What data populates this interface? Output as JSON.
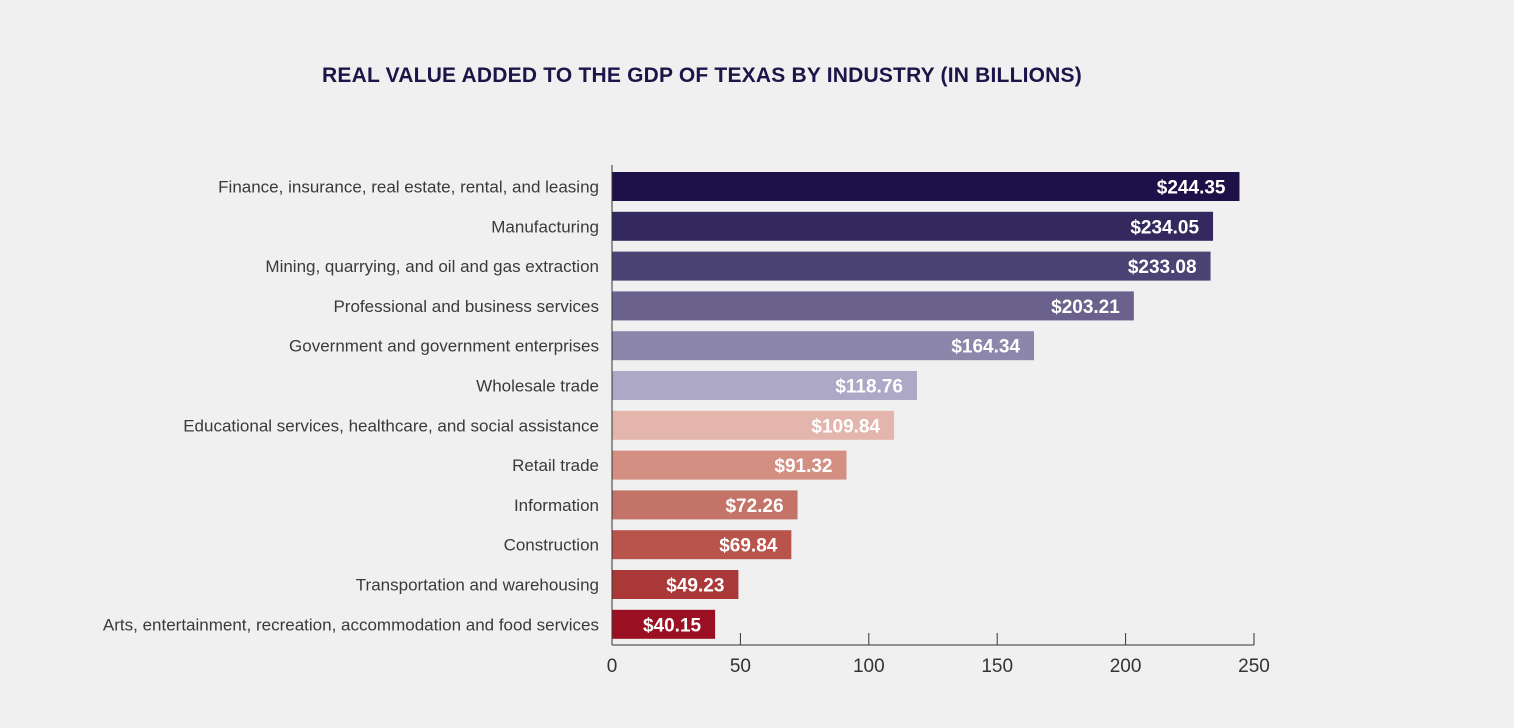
{
  "chart_data": {
    "type": "bar",
    "orientation": "horizontal",
    "title": "REAL VALUE ADDED TO THE GDP OF TEXAS BY INDUSTRY (IN BILLIONS)",
    "xlabel": "",
    "ylabel": "",
    "xlim": [
      0,
      250
    ],
    "xticks": [
      0,
      50,
      100,
      150,
      200,
      250
    ],
    "grid": false,
    "value_prefix": "$",
    "categories": [
      "Finance, insurance, real estate, rental, and leasing",
      "Manufacturing",
      "Mining, quarrying, and oil and gas extraction",
      "Professional and business services",
      "Government and government enterprises",
      "Wholesale trade",
      "Educational services, healthcare, and social assistance",
      "Retail trade",
      "Information",
      "Construction",
      "Transportation and warehousing",
      "Arts, entertainment, recreation, accommodation and food services"
    ],
    "values": [
      244.35,
      234.05,
      233.08,
      203.21,
      164.34,
      118.76,
      109.84,
      91.32,
      72.26,
      69.84,
      49.23,
      40.15
    ],
    "value_labels": [
      "$244.35",
      "$234.05",
      "$233.08",
      "$203.21",
      "$164.34",
      "$118.76",
      "$109.84",
      "$91.32",
      "$72.26",
      "$69.84",
      "$49.23",
      "$40.15"
    ],
    "colors": [
      "#1e1048",
      "#34295e",
      "#4b4373",
      "#6a628c",
      "#8c86aa",
      "#aca8c6",
      "#e4b5ad",
      "#d48f83",
      "#c47368",
      "#b8544c",
      "#ab3838",
      "#9a0f22"
    ]
  }
}
